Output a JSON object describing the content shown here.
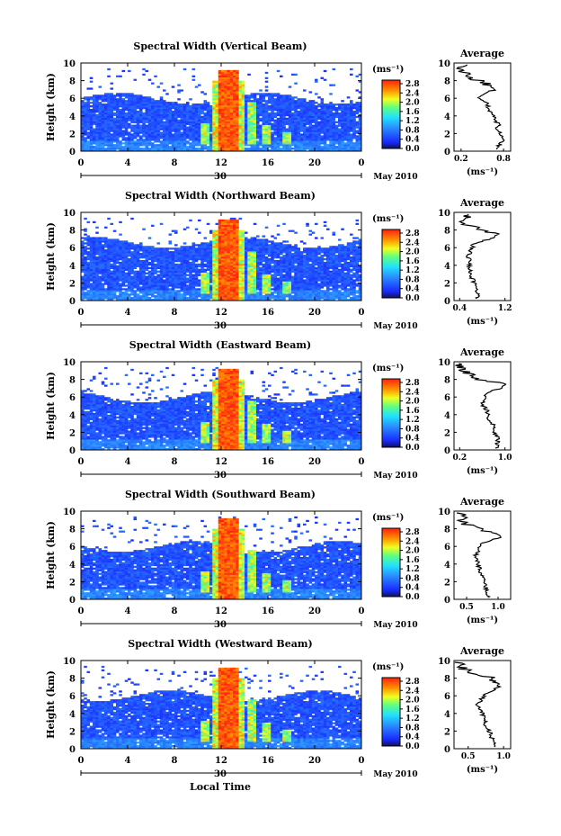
{
  "figure": {
    "xlabel": "Local Time",
    "colorbar_unit": "(ms⁻¹)",
    "colorbar_ticks": [
      "2.8",
      "2.4",
      "2.0",
      "1.6",
      "1.2",
      "0.8",
      "0.4",
      "0.0"
    ],
    "date_label": "May 2010",
    "day_label": "30",
    "avg_title": "Average",
    "avg_xlabel": "(ms⁻¹)",
    "ylabel": "Height (km)"
  },
  "chart_data": [
    {
      "type": "heatmap",
      "title": "Spectral Width (Vertical Beam)",
      "xlabel": "",
      "ylabel": "Height (km)",
      "xlim": [
        0,
        24
      ],
      "ylim": [
        0,
        10
      ],
      "xticks": [
        "0",
        "4",
        "8",
        "12",
        "16",
        "20",
        "0"
      ],
      "yticks": [
        "0",
        "2",
        "4",
        "6",
        "8",
        "10"
      ],
      "color_range": [
        0,
        3.0
      ],
      "profile": {
        "title": "Average",
        "xticks": [
          "0.2",
          "0.8"
        ],
        "xlim": [
          0.1,
          0.9
        ],
        "heights": [
          0.5,
          1,
          1.5,
          2,
          2.5,
          3,
          3.5,
          4,
          4.5,
          5,
          5.5,
          6,
          6.5,
          7,
          7.5,
          8,
          8.5,
          9,
          9.5
        ],
        "values": [
          0.72,
          0.78,
          0.8,
          0.76,
          0.7,
          0.73,
          0.68,
          0.66,
          0.62,
          0.58,
          0.55,
          0.45,
          0.5,
          0.68,
          0.6,
          0.45,
          0.3,
          0.25,
          0.22
        ]
      }
    },
    {
      "type": "heatmap",
      "title": "Spectral Width (Northward Beam)",
      "xlabel": "",
      "ylabel": "Height (km)",
      "xlim": [
        0,
        24
      ],
      "ylim": [
        0,
        10
      ],
      "xticks": [
        "0",
        "4",
        "8",
        "12",
        "16",
        "20",
        "0"
      ],
      "yticks": [
        "0",
        "2",
        "4",
        "6",
        "8",
        "10"
      ],
      "color_range": [
        0,
        3.0
      ],
      "profile": {
        "title": "Average",
        "xticks": [
          "0.4",
          "1.2"
        ],
        "xlim": [
          0.3,
          1.3
        ],
        "heights": [
          0.5,
          1,
          1.5,
          2,
          2.5,
          3,
          3.5,
          4,
          4.5,
          5,
          5.5,
          6,
          6.5,
          7,
          7.5,
          8,
          8.5,
          9,
          9.5
        ],
        "values": [
          0.72,
          0.7,
          0.68,
          0.66,
          0.62,
          0.6,
          0.58,
          0.56,
          0.6,
          0.55,
          0.58,
          0.62,
          0.65,
          0.95,
          1.05,
          0.8,
          0.55,
          0.45,
          0.5
        ]
      }
    },
    {
      "type": "heatmap",
      "title": "Spectral Width (Eastward Beam)",
      "xlabel": "",
      "ylabel": "Height (km)",
      "xlim": [
        0,
        24
      ],
      "ylim": [
        0,
        10
      ],
      "xticks": [
        "0",
        "4",
        "8",
        "12",
        "16",
        "20",
        "0"
      ],
      "yticks": [
        "0",
        "2",
        "4",
        "6",
        "8",
        "10"
      ],
      "color_range": [
        0,
        3.0
      ],
      "profile": {
        "title": "Average",
        "xticks": [
          "0.2",
          "1.0"
        ],
        "xlim": [
          0.1,
          1.1
        ],
        "heights": [
          0.5,
          1,
          1.5,
          2,
          2.5,
          3,
          3.5,
          4,
          4.5,
          5,
          5.5,
          6,
          6.5,
          7,
          7.5,
          8,
          8.5,
          9,
          9.5
        ],
        "values": [
          0.85,
          0.88,
          0.86,
          0.82,
          0.8,
          0.78,
          0.72,
          0.7,
          0.68,
          0.62,
          0.6,
          0.64,
          0.66,
          0.95,
          1.0,
          0.55,
          0.4,
          0.3,
          0.2
        ]
      }
    },
    {
      "type": "heatmap",
      "title": "Spectral Width (Southward Beam)",
      "xlabel": "",
      "ylabel": "Height (km)",
      "xlim": [
        0,
        24
      ],
      "ylim": [
        0,
        10
      ],
      "xticks": [
        "0",
        "4",
        "8",
        "12",
        "16",
        "20",
        "0"
      ],
      "yticks": [
        "0",
        "2",
        "4",
        "6",
        "8",
        "10"
      ],
      "color_range": [
        0,
        3.0
      ],
      "profile": {
        "title": "Average",
        "xticks": [
          "0.5",
          "1.0"
        ],
        "xlim": [
          0.3,
          1.2
        ],
        "heights": [
          0.5,
          1,
          1.5,
          2,
          2.5,
          3,
          3.5,
          4,
          4.5,
          5,
          5.5,
          6,
          6.5,
          7,
          7.5,
          8,
          8.5,
          9,
          9.5
        ],
        "values": [
          0.85,
          0.82,
          0.8,
          0.78,
          0.75,
          0.72,
          0.7,
          0.68,
          0.66,
          0.65,
          0.68,
          0.72,
          0.78,
          1.05,
          0.95,
          0.7,
          0.5,
          0.45,
          0.4
        ]
      }
    },
    {
      "type": "heatmap",
      "title": "Spectral Width (Westward Beam)",
      "xlabel": "Local Time",
      "ylabel": "Height (km)",
      "xlim": [
        0,
        24
      ],
      "ylim": [
        0,
        10
      ],
      "xticks": [
        "0",
        "4",
        "8",
        "12",
        "16",
        "20",
        "0"
      ],
      "yticks": [
        "0",
        "2",
        "4",
        "6",
        "8",
        "10"
      ],
      "color_range": [
        0,
        3.0
      ],
      "profile": {
        "title": "Average",
        "xticks": [
          "0.5",
          "1.0"
        ],
        "xlim": [
          0.3,
          1.1
        ],
        "heights": [
          0.5,
          1,
          1.5,
          2,
          2.5,
          3,
          3.5,
          4,
          4.5,
          5,
          5.5,
          6,
          6.5,
          7,
          7.5,
          8,
          8.5,
          9,
          9.5
        ],
        "values": [
          0.88,
          0.85,
          0.82,
          0.8,
          0.76,
          0.74,
          0.72,
          0.7,
          0.66,
          0.64,
          0.68,
          0.72,
          0.8,
          0.95,
          0.9,
          0.85,
          0.6,
          0.45,
          0.4
        ]
      }
    }
  ]
}
